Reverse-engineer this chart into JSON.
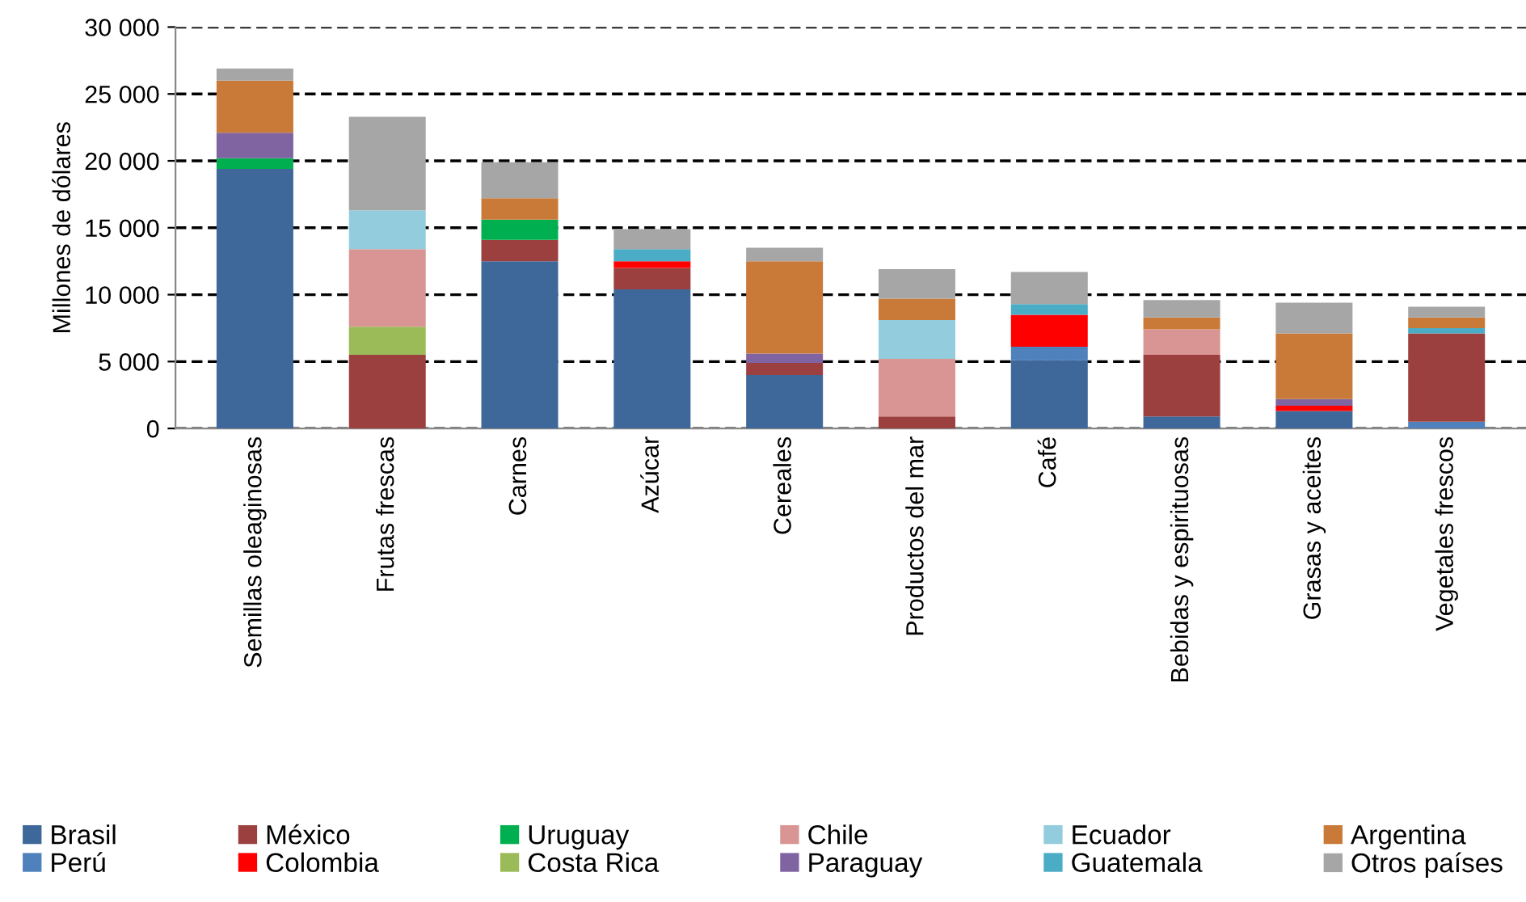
{
  "chart_data": {
    "type": "bar",
    "stacked": true,
    "ylabel": "Millones de dólares",
    "categories": [
      "Semillas oleaginosas",
      "Frutas frescas",
      "Carnes",
      "Azúcar",
      "Cereales",
      "Productos del mar",
      "Café",
      "Bebidas y espirituosas",
      "Grasas y aceites",
      "Vegetales frescos"
    ],
    "series": [
      {
        "name": "Brasil",
        "color": "#3e6899",
        "values": [
          19400,
          null,
          12500,
          10400,
          4000,
          null,
          5100,
          900,
          1300,
          null
        ]
      },
      {
        "name": "Perú",
        "color": "#4f81bd",
        "values": [
          null,
          null,
          null,
          null,
          null,
          null,
          1000,
          null,
          null,
          500
        ]
      },
      {
        "name": "México",
        "color": "#9c3f3f",
        "values": [
          null,
          5500,
          1600,
          1600,
          900,
          900,
          null,
          4600,
          null,
          6600
        ]
      },
      {
        "name": "Colombia",
        "color": "#ff0000",
        "values": [
          null,
          null,
          null,
          500,
          null,
          null,
          2400,
          null,
          400,
          null
        ]
      },
      {
        "name": "Uruguay",
        "color": "#00b050",
        "values": [
          800,
          null,
          1500,
          null,
          null,
          null,
          null,
          null,
          null,
          null
        ]
      },
      {
        "name": "Costa Rica",
        "color": "#9bbb59",
        "values": [
          null,
          2100,
          null,
          null,
          null,
          null,
          null,
          null,
          null,
          null
        ]
      },
      {
        "name": "Chile",
        "color": "#d99594",
        "values": [
          null,
          5800,
          null,
          null,
          null,
          4300,
          null,
          1900,
          null,
          null
        ]
      },
      {
        "name": "Paraguay",
        "color": "#8064a2",
        "values": [
          1900,
          null,
          null,
          null,
          700,
          null,
          null,
          null,
          500,
          null
        ]
      },
      {
        "name": "Ecuador",
        "color": "#93cddd",
        "values": [
          null,
          2900,
          null,
          null,
          null,
          2900,
          null,
          null,
          null,
          null
        ]
      },
      {
        "name": "Guatemala",
        "color": "#4bacc6",
        "values": [
          null,
          null,
          null,
          900,
          null,
          null,
          800,
          null,
          null,
          400
        ]
      },
      {
        "name": "Argentina",
        "color": "#c97a38",
        "values": [
          3900,
          null,
          1600,
          null,
          6900,
          1600,
          null,
          900,
          4900,
          800
        ]
      },
      {
        "name": "Otros países",
        "color": "#a6a6a6",
        "values": [
          900,
          7000,
          2700,
          1500,
          1000,
          2200,
          2400,
          1300,
          2300,
          800
        ]
      }
    ],
    "ylim": [
      0,
      30000
    ],
    "yticks": [
      0,
      {
        "value": 5000,
        "label": "5 000"
      },
      {
        "value": 10000,
        "label": "10 000"
      },
      {
        "value": 15000,
        "label": "15 000"
      },
      {
        "value": 20000,
        "label": "20 000"
      },
      {
        "value": 25000,
        "label": "25 000"
      },
      {
        "value": 30000,
        "label": "30 000"
      }
    ],
    "grid": "y",
    "legend": "bottom"
  }
}
